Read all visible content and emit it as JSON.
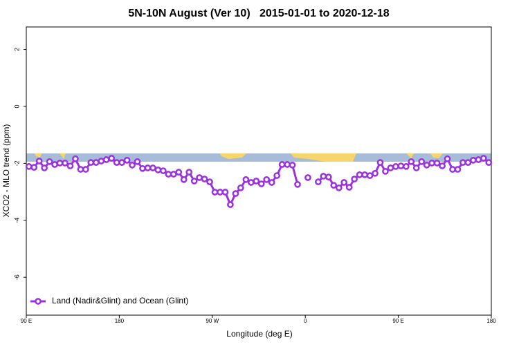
{
  "chart_data": {
    "type": "line",
    "title": "5N-10N August (Ver 10)   2015-01-01 to 2020-12-18",
    "x_label": "Longitude (deg E)",
    "y_label": "XCO2 - MLO trend (ppm)",
    "x": [
      92.5,
      97.5,
      102.5,
      107.5,
      112.5,
      117.5,
      122.5,
      127.5,
      132.5,
      137.5,
      142.5,
      147.5,
      152.5,
      157.5,
      162.5,
      167.5,
      172.5,
      177.5,
      182.5,
      187.5,
      192.5,
      197.5,
      202.5,
      207.5,
      212.5,
      217.5,
      222.5,
      227.5,
      232.5,
      237.5,
      242.5,
      247.5,
      252.5,
      257.5,
      262.5,
      267.5,
      272.5,
      277.5,
      282.5,
      287.5,
      292.5,
      297.5,
      302.5,
      307.5,
      312.5,
      317.5,
      322.5,
      327.5,
      332.5,
      337.5,
      342.5,
      347.5,
      352.5,
      357.5,
      362.5,
      367.5,
      372.5,
      377.5,
      382.5,
      387.5,
      392.5,
      397.5,
      402.5,
      407.5,
      412.5,
      417.5,
      422.5,
      427.5,
      432.5,
      437.5,
      442.5,
      447.5,
      452.5,
      457.5,
      462.5,
      467.5,
      472.5,
      477.5,
      482.5,
      487.5,
      492.5,
      497.5,
      502.5,
      507.5,
      512.5,
      517.5,
      522.5,
      527.5,
      532.5,
      537.5
    ],
    "series": [
      {
        "name": "Land (Nadir&Glint) and Ocean (Glint)",
        "color": "#9b30e0",
        "values": [
          -2.11,
          -2.14,
          -1.92,
          -2.16,
          -1.94,
          -2.04,
          -1.99,
          -1.99,
          -2.09,
          -1.84,
          -2.21,
          -2.21,
          -1.97,
          -1.97,
          -1.92,
          -1.87,
          -1.82,
          -1.97,
          -1.97,
          -1.89,
          -2.06,
          -1.94,
          -2.18,
          -2.16,
          -2.16,
          -2.23,
          -2.26,
          -2.38,
          -2.38,
          -2.31,
          -2.57,
          -2.31,
          -2.62,
          -2.5,
          -2.55,
          -2.65,
          -3.01,
          -3.01,
          -3.01,
          -3.45,
          -3.06,
          -2.86,
          -2.57,
          -2.67,
          -2.62,
          -2.72,
          -2.57,
          -2.67,
          -2.43,
          -2.04,
          -2.04,
          -2.06,
          -2.74,
          null,
          -2.5,
          null,
          -2.65,
          -2.45,
          -2.48,
          -2.77,
          -2.86,
          -2.67,
          -2.84,
          -2.55,
          -2.4,
          -2.4,
          -2.43,
          -2.35,
          -1.97,
          -2.28,
          -2.16,
          -2.11,
          -2.09,
          -2.11,
          -1.94,
          -2.16,
          -1.94,
          -2.06,
          -1.99,
          -1.99,
          -2.09,
          -1.84,
          -2.21,
          -2.21,
          -1.97,
          -1.97,
          -1.89,
          -1.87,
          -1.82,
          -1.97
        ]
      }
    ],
    "xlim": [
      90,
      540
    ],
    "xticks": [
      {
        "value": 90,
        "label": "90 E"
      },
      180,
      {
        "value": 270,
        "label": "90 W"
      },
      {
        "value": 360,
        "label": "0"
      },
      {
        "value": 450,
        "label": "90 E"
      },
      {
        "value": 540,
        "label": "180"
      }
    ],
    "ylim": [
      -7.33,
      2.79
    ],
    "yticks": [
      2,
      0,
      -2,
      -4,
      -6
    ],
    "legend": "bottom-left"
  }
}
